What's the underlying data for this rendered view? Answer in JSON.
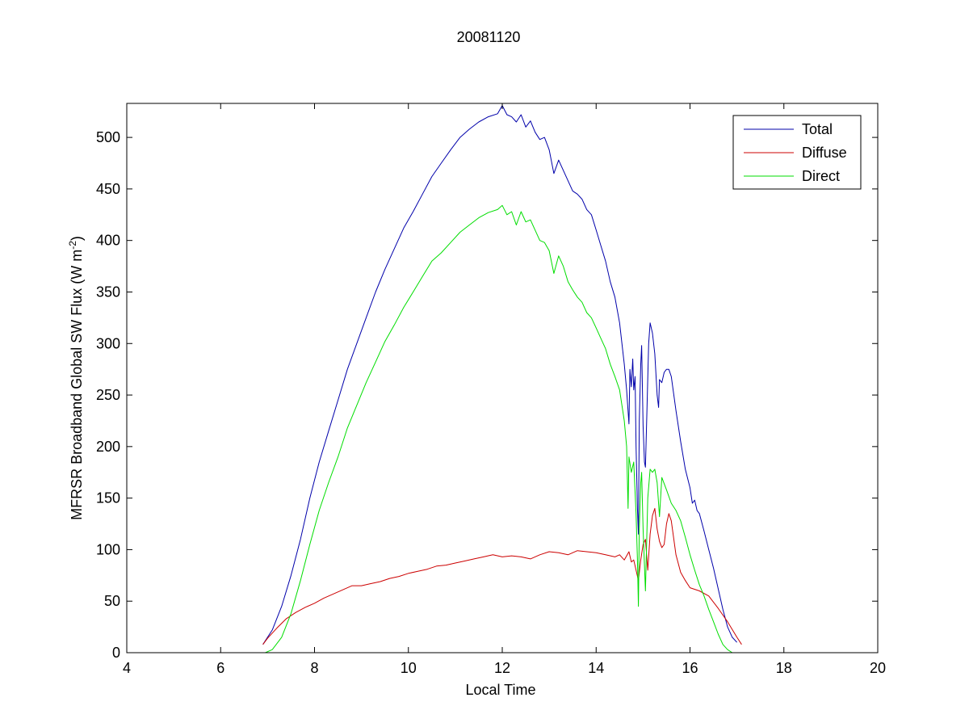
{
  "chart_data": {
    "type": "line",
    "title": "20081120",
    "xlabel": "Local Time",
    "ylabel": "MFRSR Broadband Global SW Flux (W m",
    "ylabel_superscript": "-2",
    "ylabel_close": ")",
    "xlim": [
      4,
      20
    ],
    "ylim": [
      0,
      533
    ],
    "xticks": [
      4,
      6,
      8,
      10,
      12,
      14,
      16,
      18,
      20
    ],
    "yticks": [
      0,
      50,
      100,
      150,
      200,
      250,
      300,
      350,
      400,
      450,
      500
    ],
    "grid": false,
    "legend_position": "top-right",
    "series": [
      {
        "name": "Total",
        "color": "#0000aa",
        "points": [
          [
            6.9,
            8
          ],
          [
            7.1,
            22
          ],
          [
            7.3,
            45
          ],
          [
            7.5,
            75
          ],
          [
            7.7,
            110
          ],
          [
            7.9,
            150
          ],
          [
            8.1,
            185
          ],
          [
            8.3,
            215
          ],
          [
            8.5,
            245
          ],
          [
            8.7,
            275
          ],
          [
            8.9,
            300
          ],
          [
            9.1,
            325
          ],
          [
            9.3,
            350
          ],
          [
            9.5,
            372
          ],
          [
            9.7,
            392
          ],
          [
            9.9,
            412
          ],
          [
            10.1,
            428
          ],
          [
            10.3,
            445
          ],
          [
            10.5,
            462
          ],
          [
            10.7,
            475
          ],
          [
            10.9,
            488
          ],
          [
            11.1,
            500
          ],
          [
            11.3,
            508
          ],
          [
            11.5,
            515
          ],
          [
            11.7,
            520
          ],
          [
            11.9,
            523
          ],
          [
            12.0,
            531
          ],
          [
            12.1,
            522
          ],
          [
            12.2,
            520
          ],
          [
            12.3,
            515
          ],
          [
            12.4,
            522
          ],
          [
            12.5,
            510
          ],
          [
            12.6,
            516
          ],
          [
            12.7,
            505
          ],
          [
            12.8,
            498
          ],
          [
            12.9,
            500
          ],
          [
            13.0,
            488
          ],
          [
            13.1,
            465
          ],
          [
            13.2,
            478
          ],
          [
            13.3,
            468
          ],
          [
            13.4,
            458
          ],
          [
            13.5,
            448
          ],
          [
            13.6,
            445
          ],
          [
            13.7,
            440
          ],
          [
            13.8,
            430
          ],
          [
            13.9,
            425
          ],
          [
            14.0,
            410
          ],
          [
            14.1,
            395
          ],
          [
            14.2,
            380
          ],
          [
            14.3,
            360
          ],
          [
            14.4,
            345
          ],
          [
            14.5,
            320
          ],
          [
            14.55,
            300
          ],
          [
            14.6,
            280
          ],
          [
            14.65,
            255
          ],
          [
            14.7,
            222
          ],
          [
            14.72,
            275
          ],
          [
            14.75,
            258
          ],
          [
            14.78,
            285
          ],
          [
            14.8,
            255
          ],
          [
            14.83,
            268
          ],
          [
            14.85,
            200
          ],
          [
            14.88,
            140
          ],
          [
            14.9,
            115
          ],
          [
            14.92,
            225
          ],
          [
            14.95,
            280
          ],
          [
            14.97,
            298
          ],
          [
            15.0,
            220
          ],
          [
            15.03,
            185
          ],
          [
            15.05,
            180
          ],
          [
            15.08,
            230
          ],
          [
            15.12,
            300
          ],
          [
            15.15,
            320
          ],
          [
            15.2,
            310
          ],
          [
            15.25,
            290
          ],
          [
            15.3,
            250
          ],
          [
            15.33,
            238
          ],
          [
            15.35,
            265
          ],
          [
            15.4,
            262
          ],
          [
            15.45,
            272
          ],
          [
            15.5,
            275
          ],
          [
            15.55,
            275
          ],
          [
            15.6,
            268
          ],
          [
            15.7,
            235
          ],
          [
            15.8,
            205
          ],
          [
            15.9,
            178
          ],
          [
            16.0,
            160
          ],
          [
            16.05,
            145
          ],
          [
            16.1,
            148
          ],
          [
            16.15,
            138
          ],
          [
            16.2,
            135
          ],
          [
            16.3,
            118
          ],
          [
            16.4,
            100
          ],
          [
            16.5,
            82
          ],
          [
            16.6,
            62
          ],
          [
            16.7,
            42
          ],
          [
            16.8,
            25
          ],
          [
            16.9,
            15
          ],
          [
            17.0,
            10
          ]
        ]
      },
      {
        "name": "Diffuse",
        "color": "#cc0000",
        "points": [
          [
            6.9,
            8
          ],
          [
            7.0,
            14
          ],
          [
            7.2,
            24
          ],
          [
            7.4,
            33
          ],
          [
            7.6,
            39
          ],
          [
            7.8,
            44
          ],
          [
            8.0,
            48
          ],
          [
            8.2,
            53
          ],
          [
            8.4,
            57
          ],
          [
            8.6,
            61
          ],
          [
            8.8,
            65
          ],
          [
            9.0,
            65
          ],
          [
            9.2,
            67
          ],
          [
            9.4,
            69
          ],
          [
            9.6,
            72
          ],
          [
            9.8,
            74
          ],
          [
            10.0,
            77
          ],
          [
            10.2,
            79
          ],
          [
            10.4,
            81
          ],
          [
            10.6,
            84
          ],
          [
            10.8,
            85
          ],
          [
            11.0,
            87
          ],
          [
            11.2,
            89
          ],
          [
            11.4,
            91
          ],
          [
            11.6,
            93
          ],
          [
            11.8,
            95
          ],
          [
            12.0,
            93
          ],
          [
            12.2,
            94
          ],
          [
            12.4,
            93
          ],
          [
            12.6,
            91
          ],
          [
            12.8,
            95
          ],
          [
            13.0,
            98
          ],
          [
            13.2,
            97
          ],
          [
            13.4,
            95
          ],
          [
            13.6,
            99
          ],
          [
            13.8,
            98
          ],
          [
            14.0,
            97
          ],
          [
            14.2,
            95
          ],
          [
            14.4,
            93
          ],
          [
            14.5,
            95
          ],
          [
            14.6,
            90
          ],
          [
            14.7,
            98
          ],
          [
            14.75,
            88
          ],
          [
            14.8,
            90
          ],
          [
            14.85,
            80
          ],
          [
            14.9,
            70
          ],
          [
            14.95,
            90
          ],
          [
            15.0,
            105
          ],
          [
            15.05,
            110
          ],
          [
            15.1,
            80
          ],
          [
            15.15,
            115
          ],
          [
            15.2,
            133
          ],
          [
            15.25,
            140
          ],
          [
            15.3,
            120
          ],
          [
            15.35,
            108
          ],
          [
            15.4,
            102
          ],
          [
            15.45,
            105
          ],
          [
            15.5,
            125
          ],
          [
            15.55,
            135
          ],
          [
            15.6,
            128
          ],
          [
            15.7,
            95
          ],
          [
            15.8,
            78
          ],
          [
            15.9,
            70
          ],
          [
            16.0,
            63
          ],
          [
            16.2,
            60
          ],
          [
            16.4,
            55
          ],
          [
            16.6,
            43
          ],
          [
            16.8,
            30
          ],
          [
            17.0,
            15
          ],
          [
            17.1,
            8
          ]
        ]
      },
      {
        "name": "Direct",
        "color": "#00dd00",
        "points": [
          [
            6.95,
            0
          ],
          [
            7.1,
            3
          ],
          [
            7.3,
            15
          ],
          [
            7.5,
            38
          ],
          [
            7.7,
            70
          ],
          [
            7.9,
            105
          ],
          [
            8.1,
            138
          ],
          [
            8.3,
            165
          ],
          [
            8.5,
            190
          ],
          [
            8.7,
            218
          ],
          [
            8.9,
            240
          ],
          [
            9.1,
            262
          ],
          [
            9.3,
            282
          ],
          [
            9.5,
            302
          ],
          [
            9.7,
            318
          ],
          [
            9.9,
            335
          ],
          [
            10.1,
            350
          ],
          [
            10.3,
            365
          ],
          [
            10.5,
            380
          ],
          [
            10.7,
            388
          ],
          [
            10.9,
            398
          ],
          [
            11.1,
            408
          ],
          [
            11.3,
            415
          ],
          [
            11.5,
            422
          ],
          [
            11.7,
            427
          ],
          [
            11.9,
            430
          ],
          [
            12.0,
            434
          ],
          [
            12.1,
            425
          ],
          [
            12.2,
            428
          ],
          [
            12.3,
            415
          ],
          [
            12.4,
            428
          ],
          [
            12.5,
            418
          ],
          [
            12.6,
            420
          ],
          [
            12.7,
            410
          ],
          [
            12.8,
            400
          ],
          [
            12.9,
            398
          ],
          [
            13.0,
            390
          ],
          [
            13.1,
            368
          ],
          [
            13.2,
            385
          ],
          [
            13.3,
            375
          ],
          [
            13.4,
            360
          ],
          [
            13.5,
            352
          ],
          [
            13.6,
            345
          ],
          [
            13.7,
            340
          ],
          [
            13.8,
            330
          ],
          [
            13.9,
            325
          ],
          [
            14.0,
            315
          ],
          [
            14.1,
            305
          ],
          [
            14.2,
            295
          ],
          [
            14.3,
            280
          ],
          [
            14.4,
            268
          ],
          [
            14.5,
            255
          ],
          [
            14.55,
            240
          ],
          [
            14.6,
            225
          ],
          [
            14.65,
            200
          ],
          [
            14.68,
            140
          ],
          [
            14.7,
            190
          ],
          [
            14.75,
            175
          ],
          [
            14.8,
            185
          ],
          [
            14.85,
            135
          ],
          [
            14.88,
            90
          ],
          [
            14.9,
            45
          ],
          [
            14.92,
            120
          ],
          [
            14.95,
            165
          ],
          [
            14.97,
            175
          ],
          [
            15.0,
            120
          ],
          [
            15.05,
            60
          ],
          [
            15.1,
            150
          ],
          [
            15.15,
            178
          ],
          [
            15.2,
            175
          ],
          [
            15.25,
            178
          ],
          [
            15.3,
            165
          ],
          [
            15.35,
            132
          ],
          [
            15.4,
            170
          ],
          [
            15.5,
            158
          ],
          [
            15.6,
            145
          ],
          [
            15.7,
            138
          ],
          [
            15.8,
            128
          ],
          [
            15.9,
            112
          ],
          [
            16.0,
            95
          ],
          [
            16.1,
            80
          ],
          [
            16.2,
            66
          ],
          [
            16.3,
            55
          ],
          [
            16.4,
            42
          ],
          [
            16.5,
            30
          ],
          [
            16.6,
            18
          ],
          [
            16.7,
            8
          ],
          [
            16.8,
            3
          ],
          [
            16.9,
            0
          ]
        ]
      }
    ]
  }
}
